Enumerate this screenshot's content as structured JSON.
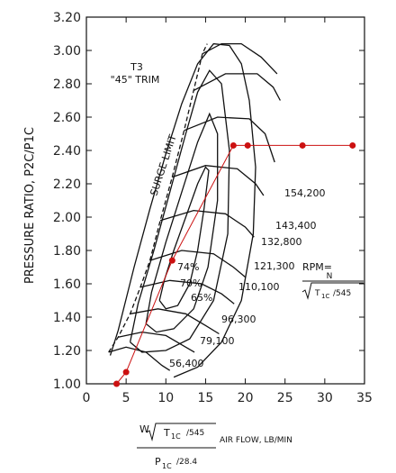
{
  "chart_data": {
    "type": "scatter",
    "xlim": [
      0,
      35
    ],
    "ylim": [
      1.0,
      3.2
    ],
    "x_ticks": [
      "0",
      "5",
      "10",
      "15",
      "20",
      "25",
      "30",
      "35"
    ],
    "y_ticks": [
      "1.00",
      "1.20",
      "1.40",
      "1.60",
      "1.80",
      "2.00",
      "2.20",
      "2.40",
      "2.60",
      "2.80",
      "3.00",
      "3.20"
    ],
    "ylabel": "PRESSURE RATIO, P2C/P1C",
    "xlabel_suffix": "AIR FLOW, LB/MIN",
    "xlabel_num_w": "W",
    "xlabel_num_t": "T",
    "xlabel_num_sub": "1C",
    "xlabel_num_div": "/545",
    "xlabel_den_p": "P",
    "xlabel_den_sub": "1C",
    "xlabel_den_div": "/28.4",
    "trim_line1": "T3",
    "trim_line2": "\"45\" TRIM",
    "surge_label": "SURGE LIMIT",
    "rpm_label": "RPM=",
    "rpm_n": "N",
    "rpm_t": "T",
    "rpm_t_sub": "1C",
    "rpm_t_div": "/545",
    "grid": false,
    "speed_lines": [
      {
        "label": "56,400",
        "points": [
          [
            2.8,
            1.19
          ],
          [
            5.0,
            1.22
          ],
          [
            7.5,
            1.19
          ],
          [
            9.5,
            1.11
          ],
          [
            10.5,
            1.08
          ]
        ]
      },
      {
        "label": "79,100",
        "points": [
          [
            4.0,
            1.28
          ],
          [
            7.0,
            1.31
          ],
          [
            10.0,
            1.29
          ],
          [
            12.5,
            1.22
          ],
          [
            13.6,
            1.19
          ]
        ]
      },
      {
        "label": "96,300",
        "points": [
          [
            5.5,
            1.42
          ],
          [
            9.0,
            1.45
          ],
          [
            12.5,
            1.42
          ],
          [
            15.0,
            1.35
          ],
          [
            16.7,
            1.3
          ]
        ]
      },
      {
        "label": "110,100",
        "points": [
          [
            6.8,
            1.58
          ],
          [
            10.5,
            1.62
          ],
          [
            14.5,
            1.6
          ],
          [
            17.0,
            1.54
          ],
          [
            18.6,
            1.48
          ]
        ]
      },
      {
        "label": "121,300",
        "points": [
          [
            8.0,
            1.74
          ],
          [
            12.0,
            1.8
          ],
          [
            16.0,
            1.78
          ],
          [
            18.5,
            1.7
          ],
          [
            20.0,
            1.64
          ]
        ]
      },
      {
        "label": "132,800",
        "points": [
          [
            9.3,
            1.98
          ],
          [
            13.5,
            2.04
          ],
          [
            17.5,
            2.02
          ],
          [
            20.0,
            1.94
          ],
          [
            21.1,
            1.88
          ]
        ]
      },
      {
        "label": "143,400",
        "points": [
          [
            10.8,
            2.24
          ],
          [
            15.0,
            2.31
          ],
          [
            19.0,
            2.29
          ],
          [
            21.3,
            2.2
          ],
          [
            22.3,
            2.13
          ]
        ]
      },
      {
        "label": "154,200",
        "points": [
          [
            12.3,
            2.52
          ],
          [
            16.5,
            2.6
          ],
          [
            20.5,
            2.59
          ],
          [
            22.5,
            2.5
          ],
          [
            23.7,
            2.33
          ]
        ]
      },
      {
        "label": "",
        "points": [
          [
            13.5,
            2.76
          ],
          [
            17.5,
            2.86
          ],
          [
            21.5,
            2.86
          ],
          [
            23.5,
            2.78
          ],
          [
            24.4,
            2.7
          ]
        ]
      },
      {
        "label": "",
        "points": [
          [
            14.6,
            2.98
          ],
          [
            17.0,
            3.04
          ],
          [
            19.5,
            3.04
          ],
          [
            22.0,
            2.96
          ],
          [
            24.0,
            2.86
          ]
        ]
      }
    ],
    "efficiency_islands": [
      {
        "label": "74%",
        "points": [
          [
            9.2,
            1.5
          ],
          [
            9.8,
            1.62
          ],
          [
            11.0,
            1.8
          ],
          [
            12.5,
            2.0
          ],
          [
            14.0,
            2.2
          ],
          [
            15.0,
            2.3
          ],
          [
            15.4,
            2.28
          ],
          [
            14.8,
            2.05
          ],
          [
            14.0,
            1.8
          ],
          [
            13.0,
            1.6
          ],
          [
            11.5,
            1.47
          ],
          [
            10.0,
            1.45
          ],
          [
            9.2,
            1.5
          ]
        ]
      },
      {
        "label": "70%",
        "points": [
          [
            7.5,
            1.36
          ],
          [
            8.2,
            1.55
          ],
          [
            10.0,
            1.85
          ],
          [
            12.0,
            2.15
          ],
          [
            14.0,
            2.45
          ],
          [
            15.5,
            2.62
          ],
          [
            16.5,
            2.5
          ],
          [
            16.5,
            2.1
          ],
          [
            15.3,
            1.7
          ],
          [
            13.5,
            1.45
          ],
          [
            11.0,
            1.33
          ],
          [
            8.8,
            1.31
          ],
          [
            7.5,
            1.36
          ]
        ]
      },
      {
        "label": "65%",
        "points": [
          [
            5.5,
            1.25
          ],
          [
            6.5,
            1.48
          ],
          [
            8.5,
            1.8
          ],
          [
            10.5,
            2.15
          ],
          [
            12.5,
            2.5
          ],
          [
            14.0,
            2.75
          ],
          [
            15.5,
            2.88
          ],
          [
            17.0,
            2.8
          ],
          [
            18.0,
            2.4
          ],
          [
            17.8,
            1.9
          ],
          [
            16.0,
            1.5
          ],
          [
            13.0,
            1.27
          ],
          [
            10.0,
            1.2
          ],
          [
            7.0,
            1.19
          ],
          [
            5.5,
            1.25
          ]
        ]
      },
      {
        "label": "",
        "points": [
          [
            3.0,
            1.17
          ],
          [
            4.0,
            1.32
          ],
          [
            6.0,
            1.7
          ],
          [
            8.0,
            2.05
          ],
          [
            10.0,
            2.38
          ],
          [
            12.0,
            2.68
          ],
          [
            14.0,
            2.92
          ],
          [
            16.0,
            3.04
          ],
          [
            18.0,
            3.03
          ],
          [
            19.5,
            2.92
          ],
          [
            20.5,
            2.7
          ],
          [
            21.3,
            2.3
          ],
          [
            21.0,
            1.9
          ],
          [
            19.5,
            1.5
          ],
          [
            17.0,
            1.25
          ],
          [
            14.0,
            1.1
          ],
          [
            11.0,
            1.04
          ]
        ]
      }
    ],
    "surge_line": [
      [
        2.8,
        1.19
      ],
      [
        4.0,
        1.28
      ],
      [
        5.5,
        1.42
      ],
      [
        6.8,
        1.58
      ],
      [
        8.0,
        1.74
      ],
      [
        9.3,
        1.98
      ],
      [
        10.8,
        2.24
      ],
      [
        12.3,
        2.52
      ],
      [
        13.5,
        2.76
      ],
      [
        14.6,
        2.98
      ],
      [
        15.2,
        3.04
      ]
    ],
    "series": [
      {
        "color": "#cc1111",
        "points": [
          [
            3.8,
            1.0
          ],
          [
            5.0,
            1.07
          ],
          [
            10.8,
            1.74
          ],
          [
            18.5,
            2.43
          ],
          [
            20.3,
            2.43
          ],
          [
            27.2,
            2.43
          ],
          [
            33.5,
            2.43
          ]
        ]
      }
    ]
  }
}
